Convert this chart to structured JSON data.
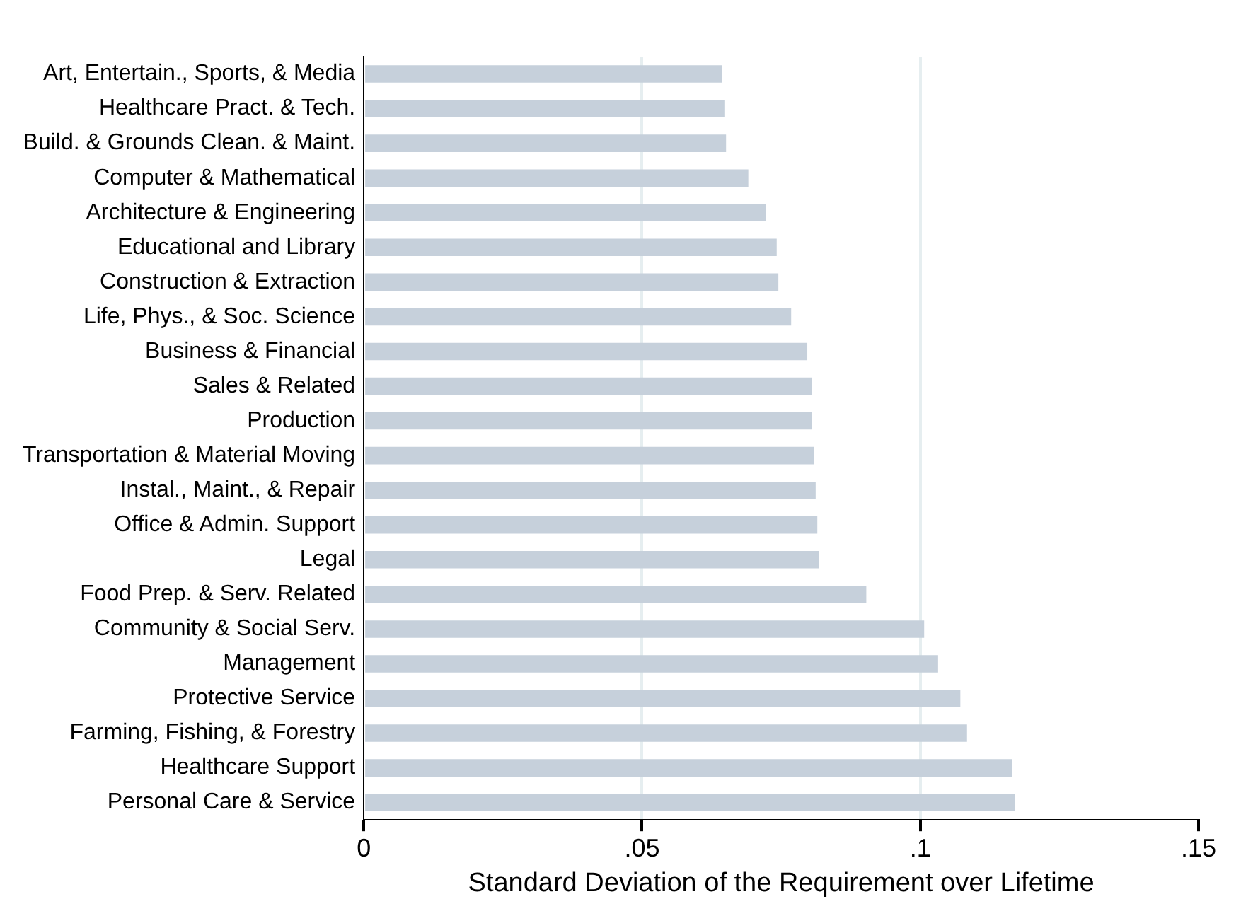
{
  "chart_data": {
    "type": "bar",
    "orientation": "horizontal",
    "xlabel": "Standard Deviation of the Requirement over Lifetime",
    "categories": [
      "Art, Entertain., Sports, & Media",
      "Healthcare Pract. & Tech.",
      "Build. & Grounds Clean. & Maint.",
      "Computer & Mathematical",
      "Architecture & Engineering",
      "Educational and Library",
      "Construction & Extraction",
      "Life, Phys., & Soc. Science",
      "Business & Financial",
      "Sales & Related",
      "Production",
      "Transportation & Material Moving",
      "Instal., Maint., & Repair",
      "Office & Admin. Support",
      "Legal",
      "Food Prep. & Serv. Related",
      "Community & Social Serv.",
      "Management",
      "Protective Service",
      "Farming, Fishing, & Forestry",
      "Healthcare Support",
      "Personal Care & Service"
    ],
    "values": [
      0.0644,
      0.0648,
      0.0651,
      0.0691,
      0.0722,
      0.0742,
      0.0745,
      0.0768,
      0.0797,
      0.0805,
      0.0805,
      0.0809,
      0.0812,
      0.0815,
      0.0818,
      0.0903,
      0.1007,
      0.1032,
      0.1072,
      0.1084,
      0.1165,
      0.117
    ],
    "color": "#c6d0db",
    "xlim": [
      0,
      0.15
    ],
    "xticks": [
      0,
      {
        "value": 0.05,
        "label": ".05"
      },
      {
        "value": 0.1,
        "label": ".1"
      },
      {
        "value": 0.15,
        "label": ".15"
      }
    ],
    "grid": "x",
    "legend": false
  }
}
